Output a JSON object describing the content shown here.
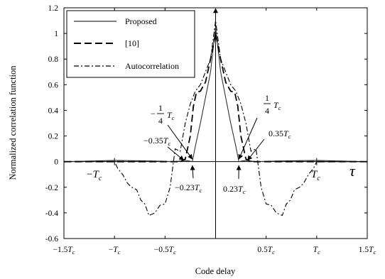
{
  "chart_data": {
    "type": "line",
    "xlabel": "Code delay",
    "ylabel": "Normalized correlation function",
    "xlim": [
      -1.5,
      1.5
    ],
    "ylim": [
      -0.6,
      1.2
    ],
    "grid": false,
    "legend_position": "top-left",
    "x_ticks": [
      {
        "value": -1.5,
        "main": "−1.5",
        "T": "T",
        "sub": "c"
      },
      {
        "value": -1.0,
        "main": "−",
        "T": "T",
        "sub": "c"
      },
      {
        "value": -0.5,
        "main": "−0.5",
        "T": "T",
        "sub": "c"
      },
      {
        "value": 0.5,
        "main": "0.5",
        "T": "T",
        "sub": "c"
      },
      {
        "value": 1.0,
        "main": "",
        "T": "T",
        "sub": "c"
      },
      {
        "value": 1.5,
        "main": "1.5",
        "T": "T",
        "sub": "c"
      }
    ],
    "y_ticks": [
      {
        "value": -0.6,
        "label": "-0.6"
      },
      {
        "value": -0.4,
        "label": "-0.4"
      },
      {
        "value": -0.2,
        "label": "-0.2"
      },
      {
        "value": 0,
        "label": "0"
      },
      {
        "value": 0.2,
        "label": "0.2"
      },
      {
        "value": 0.4,
        "label": "0.4"
      },
      {
        "value": 0.6,
        "label": "0.6"
      },
      {
        "value": 0.8,
        "label": "0.8"
      },
      {
        "value": 1,
        "label": "1"
      },
      {
        "value": 1.2,
        "label": "1.2"
      }
    ],
    "series": [
      {
        "name": "Proposed",
        "style": "solid",
        "color": "#333333",
        "x": [
          -1.5,
          -1.0,
          -0.6,
          -0.4,
          -0.3,
          -0.26,
          -0.23,
          -0.2,
          -0.15,
          -0.1,
          -0.05,
          0.0,
          0.05,
          0.1,
          0.15,
          0.2,
          0.23,
          0.26,
          0.3,
          0.4,
          0.6,
          1.0,
          1.5
        ],
        "y": [
          0.0,
          0.01,
          0.005,
          0.0,
          0.01,
          0.005,
          0.0,
          0.12,
          0.3,
          0.5,
          0.7,
          1.05,
          0.7,
          0.5,
          0.3,
          0.12,
          0.0,
          0.005,
          0.01,
          0.0,
          0.005,
          0.01,
          0.0
        ]
      },
      {
        "name": "[10]",
        "style": "dashed",
        "color": "#000000",
        "x": [
          -1.5,
          -1.2,
          -1.0,
          -0.6,
          -0.45,
          -0.35,
          -0.3,
          -0.25,
          -0.22,
          -0.19,
          -0.15,
          -0.1,
          -0.05,
          0.0,
          0.05,
          0.1,
          0.15,
          0.19,
          0.22,
          0.25,
          0.3,
          0.35,
          0.45,
          0.6,
          1.0,
          1.2,
          1.5
        ],
        "y": [
          0.0,
          0.0,
          0.0,
          0.0,
          0.0,
          0.0,
          0.02,
          0.2,
          0.43,
          0.54,
          0.55,
          0.62,
          0.8,
          1.0,
          0.8,
          0.62,
          0.55,
          0.54,
          0.43,
          0.2,
          0.02,
          0.0,
          0.0,
          0.0,
          0.0,
          0.0,
          0.0
        ]
      },
      {
        "name": "Autocorrelation",
        "style": "dashdot",
        "color": "#000000",
        "x": [
          -1.5,
          -1.1,
          -1.0,
          -0.97,
          -0.92,
          -0.87,
          -0.83,
          -0.78,
          -0.74,
          -0.7,
          -0.66,
          -0.6,
          -0.55,
          -0.5,
          -0.45,
          -0.4,
          -0.35,
          -0.3,
          -0.25,
          -0.2,
          -0.15,
          -0.1,
          -0.05,
          0.0,
          0.05,
          0.1,
          0.15,
          0.2,
          0.25,
          0.3,
          0.35,
          0.4,
          0.45,
          0.5,
          0.55,
          0.6,
          0.66,
          0.7,
          0.74,
          0.78,
          0.83,
          0.87,
          0.92,
          0.97,
          1.0,
          1.1,
          1.5
        ],
        "y": [
          0.0,
          0.0,
          0.0,
          -0.05,
          -0.1,
          -0.17,
          -0.2,
          -0.22,
          -0.3,
          -0.33,
          -0.42,
          -0.4,
          -0.34,
          -0.33,
          -0.2,
          0.1,
          0.08,
          0.3,
          0.45,
          0.55,
          0.6,
          0.7,
          0.8,
          1.1,
          0.8,
          0.7,
          0.6,
          0.55,
          0.45,
          0.3,
          0.08,
          0.1,
          -0.2,
          -0.33,
          -0.34,
          -0.4,
          -0.42,
          -0.33,
          -0.3,
          -0.22,
          -0.2,
          -0.17,
          -0.1,
          -0.05,
          0.0,
          0.0,
          0.0
        ]
      }
    ],
    "annotations": [
      {
        "id": "neg-quarter",
        "kind": "frac",
        "sign": "−",
        "num": "1",
        "den": "4",
        "T": "T",
        "sub": "c",
        "arrow_x": -0.23,
        "arrow_y": 0.02
      },
      {
        "id": "pos-quarter",
        "kind": "frac",
        "sign": "",
        "num": "1",
        "den": "4",
        "T": "T",
        "sub": "c",
        "arrow_x": 0.23,
        "arrow_y": 0.02
      },
      {
        "id": "neg-035",
        "kind": "plain",
        "main": "−0.35",
        "T": "T",
        "sub": "c",
        "arrow_x": -0.33,
        "arrow_y": 0.0
      },
      {
        "id": "pos-035",
        "kind": "plain",
        "main": "0.35",
        "T": "T",
        "sub": "c",
        "arrow_x": 0.33,
        "arrow_y": 0.0
      },
      {
        "id": "neg-023",
        "kind": "plain",
        "main": "−0.23",
        "T": "T",
        "sub": "c",
        "arrow_x": -0.23,
        "arrow_y": -0.02
      },
      {
        "id": "pos-023",
        "kind": "plain",
        "main": "0.23",
        "T": "T",
        "sub": "c",
        "arrow_x": 0.23,
        "arrow_y": -0.02
      },
      {
        "id": "neg-tc",
        "kind": "plain",
        "main": "−",
        "T": "T",
        "sub": "c",
        "arrow_x": -1.0,
        "arrow_y": 0.0
      },
      {
        "id": "pos-tc",
        "kind": "plain",
        "main": "",
        "T": "T",
        "sub": "c",
        "arrow_x": 1.0,
        "arrow_y": 0.0
      },
      {
        "id": "tau",
        "kind": "symbol",
        "main": "τ"
      }
    ]
  }
}
